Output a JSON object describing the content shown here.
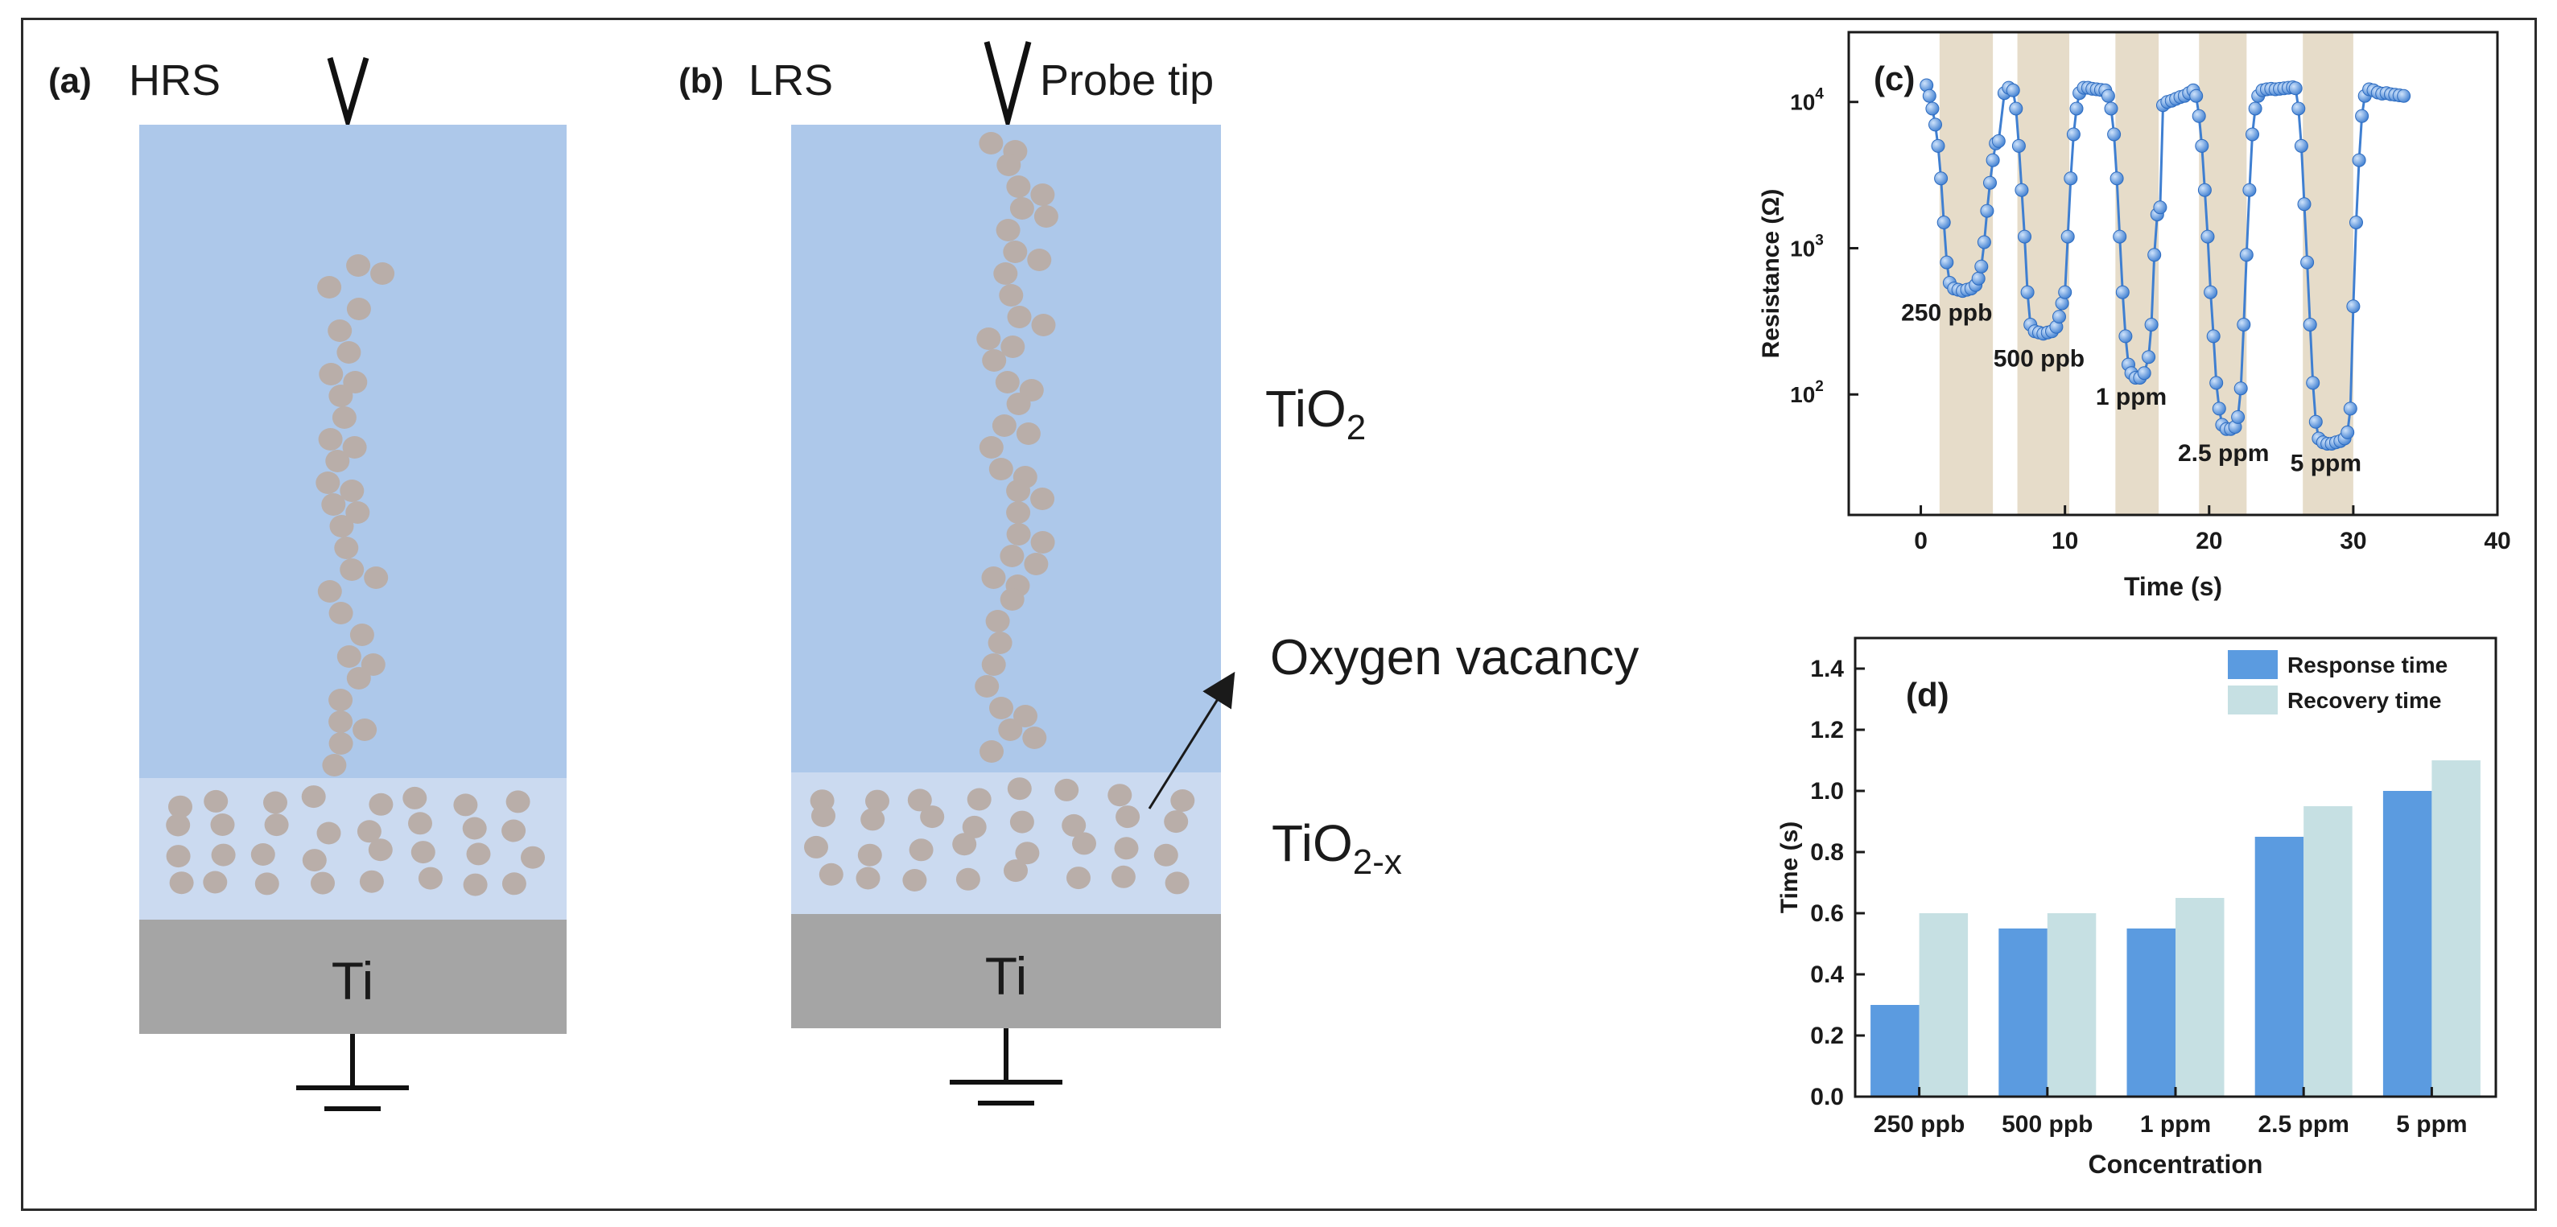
{
  "panel_a": {
    "label": "(a)",
    "state": "HRS",
    "ti_label": "Ti"
  },
  "panel_b": {
    "label": "(b)",
    "state": "LRS",
    "probe_label": "Probe tip",
    "ti_label": "Ti"
  },
  "layers": {
    "tio2_main": "TiO",
    "tio2_main_sub": "2",
    "tio2x_main": "TiO",
    "tio2x_sub": "2-x",
    "oxygen_vacancy": "Oxygen  vacancy"
  },
  "colors": {
    "tio2": "#adc8ea",
    "tio2x": "#cbdaf0",
    "ti": "#a5a5a5",
    "dot": "#b9aea9",
    "series_line": "#3f7fd1",
    "marker": "#5b9be0",
    "exposure_band": "#e6dcc9",
    "response_bar": "#5b9be0",
    "recovery_bar": "#c6e0e3"
  },
  "chart_data": [
    {
      "panel": "(c)",
      "type": "line",
      "xlabel": "Time (s)",
      "ylabel": "Resistance (Ω)",
      "xlim": [
        -5,
        40
      ],
      "xticks": [
        0,
        10,
        20,
        30,
        40
      ],
      "yscale": "log",
      "ylim": [
        15,
        30000
      ],
      "yticks": [
        {
          "value": 100,
          "base": "10",
          "exp": "2"
        },
        {
          "value": 1000,
          "base": "10",
          "exp": "3"
        },
        {
          "value": 10000,
          "base": "10",
          "exp": "4"
        }
      ],
      "exposure_bands": [
        [
          1.3,
          5.0
        ],
        [
          6.7,
          10.3
        ],
        [
          13.5,
          16.5
        ],
        [
          19.3,
          22.6
        ],
        [
          26.5,
          30.0
        ]
      ],
      "annotations": [
        {
          "text": "250 ppb",
          "x": 1.8,
          "y": 320
        },
        {
          "text": "500 ppb",
          "x": 8.2,
          "y": 155
        },
        {
          "text": "1 ppm",
          "x": 14.6,
          "y": 85
        },
        {
          "text": "2.5 ppm",
          "x": 21.0,
          "y": 35
        },
        {
          "text": "5 ppm",
          "x": 28.1,
          "y": 30
        }
      ],
      "series": [
        {
          "name": "Resistance",
          "points": [
            [
              0.4,
              13000
            ],
            [
              0.6,
              11000
            ],
            [
              0.8,
              9000
            ],
            [
              1.0,
              7000
            ],
            [
              1.2,
              5000
            ],
            [
              1.4,
              3000
            ],
            [
              1.6,
              1500
            ],
            [
              1.8,
              800
            ],
            [
              2.0,
              580
            ],
            [
              2.3,
              530
            ],
            [
              2.6,
              520
            ],
            [
              2.9,
              510
            ],
            [
              3.2,
              520
            ],
            [
              3.5,
              530
            ],
            [
              3.8,
              560
            ],
            [
              4.0,
              620
            ],
            [
              4.2,
              750
            ],
            [
              4.4,
              1100
            ],
            [
              4.6,
              1800
            ],
            [
              4.8,
              2800
            ],
            [
              5.0,
              4000
            ],
            [
              5.2,
              5200
            ],
            [
              5.4,
              5400
            ],
            [
              5.8,
              11500
            ],
            [
              6.1,
              12500
            ],
            [
              6.4,
              12000
            ],
            [
              6.6,
              9000
            ],
            [
              6.8,
              5000
            ],
            [
              7.0,
              2500
            ],
            [
              7.2,
              1200
            ],
            [
              7.4,
              500
            ],
            [
              7.6,
              300
            ],
            [
              7.9,
              270
            ],
            [
              8.2,
              265
            ],
            [
              8.5,
              260
            ],
            [
              8.8,
              265
            ],
            [
              9.1,
              270
            ],
            [
              9.4,
              290
            ],
            [
              9.6,
              340
            ],
            [
              9.8,
              420
            ],
            [
              10.0,
              500
            ],
            [
              10.2,
              1200
            ],
            [
              10.4,
              3000
            ],
            [
              10.6,
              6000
            ],
            [
              10.8,
              9000
            ],
            [
              11.0,
              11500
            ],
            [
              11.3,
              12500
            ],
            [
              11.6,
              12500
            ],
            [
              11.9,
              12300
            ],
            [
              12.2,
              12200
            ],
            [
              12.5,
              12100
            ],
            [
              12.8,
              12000
            ],
            [
              13.0,
              11000
            ],
            [
              13.2,
              9000
            ],
            [
              13.4,
              6000
            ],
            [
              13.6,
              3000
            ],
            [
              13.8,
              1200
            ],
            [
              14.0,
              500
            ],
            [
              14.2,
              250
            ],
            [
              14.4,
              160
            ],
            [
              14.6,
              140
            ],
            [
              14.9,
              130
            ],
            [
              15.2,
              130
            ],
            [
              15.5,
              140
            ],
            [
              15.8,
              180
            ],
            [
              16.0,
              300
            ],
            [
              16.2,
              900
            ],
            [
              16.4,
              1700
            ],
            [
              16.6,
              1900
            ],
            [
              16.8,
              9500
            ],
            [
              17.1,
              10000
            ],
            [
              17.4,
              10200
            ],
            [
              17.7,
              10500
            ],
            [
              18.0,
              10800
            ],
            [
              18.3,
              11000
            ],
            [
              18.6,
              11500
            ],
            [
              18.9,
              12000
            ],
            [
              19.1,
              11000
            ],
            [
              19.3,
              8000
            ],
            [
              19.5,
              5000
            ],
            [
              19.7,
              2500
            ],
            [
              19.9,
              1200
            ],
            [
              20.1,
              500
            ],
            [
              20.3,
              250
            ],
            [
              20.5,
              120
            ],
            [
              20.7,
              80
            ],
            [
              20.9,
              62
            ],
            [
              21.2,
              58
            ],
            [
              21.5,
              58
            ],
            [
              21.8,
              60
            ],
            [
              22.0,
              70
            ],
            [
              22.2,
              110
            ],
            [
              22.4,
              300
            ],
            [
              22.6,
              900
            ],
            [
              22.8,
              2500
            ],
            [
              23.0,
              6000
            ],
            [
              23.2,
              9000
            ],
            [
              23.4,
              11000
            ],
            [
              23.7,
              12000
            ],
            [
              24.0,
              12200
            ],
            [
              24.3,
              12300
            ],
            [
              24.6,
              12200
            ],
            [
              24.9,
              12300
            ],
            [
              25.2,
              12400
            ],
            [
              25.5,
              12500
            ],
            [
              25.8,
              12600
            ],
            [
              26.0,
              12400
            ],
            [
              26.2,
              9000
            ],
            [
              26.4,
              5000
            ],
            [
              26.6,
              2000
            ],
            [
              26.8,
              800
            ],
            [
              27.0,
              300
            ],
            [
              27.2,
              120
            ],
            [
              27.4,
              65
            ],
            [
              27.6,
              50
            ],
            [
              27.9,
              47
            ],
            [
              28.2,
              46
            ],
            [
              28.5,
              46
            ],
            [
              28.8,
              47
            ],
            [
              29.1,
              48
            ],
            [
              29.4,
              50
            ],
            [
              29.6,
              55
            ],
            [
              29.8,
              80
            ],
            [
              30.0,
              400
            ],
            [
              30.2,
              1500
            ],
            [
              30.4,
              4000
            ],
            [
              30.6,
              8000
            ],
            [
              30.8,
              11000
            ],
            [
              31.1,
              12200
            ],
            [
              31.4,
              12000
            ],
            [
              31.7,
              11600
            ],
            [
              32.0,
              11400
            ],
            [
              32.3,
              11500
            ],
            [
              32.6,
              11300
            ],
            [
              32.9,
              11200
            ],
            [
              33.2,
              11100
            ],
            [
              33.5,
              11000
            ]
          ]
        }
      ]
    },
    {
      "panel": "(d)",
      "type": "bar",
      "title": "",
      "xlabel": "Concentration",
      "ylabel": "Time (s)",
      "ylim": [
        0.0,
        1.5
      ],
      "yticks": [
        0.0,
        0.2,
        0.4,
        0.6,
        0.8,
        1.0,
        1.2,
        1.4
      ],
      "ytick_labels": [
        "0.0",
        "0.2",
        "0.4",
        "0.6",
        "0.8",
        "1.0",
        "1.2",
        "1.4"
      ],
      "categories": [
        "250 ppb",
        "500 ppb",
        "1 ppm",
        "2.5 ppm",
        "5 ppm"
      ],
      "series": [
        {
          "name": "Response time",
          "values": [
            0.3,
            0.55,
            0.55,
            0.85,
            1.0
          ]
        },
        {
          "name": "Recovery time",
          "values": [
            0.6,
            0.6,
            0.65,
            0.95,
            1.1
          ]
        }
      ]
    }
  ]
}
